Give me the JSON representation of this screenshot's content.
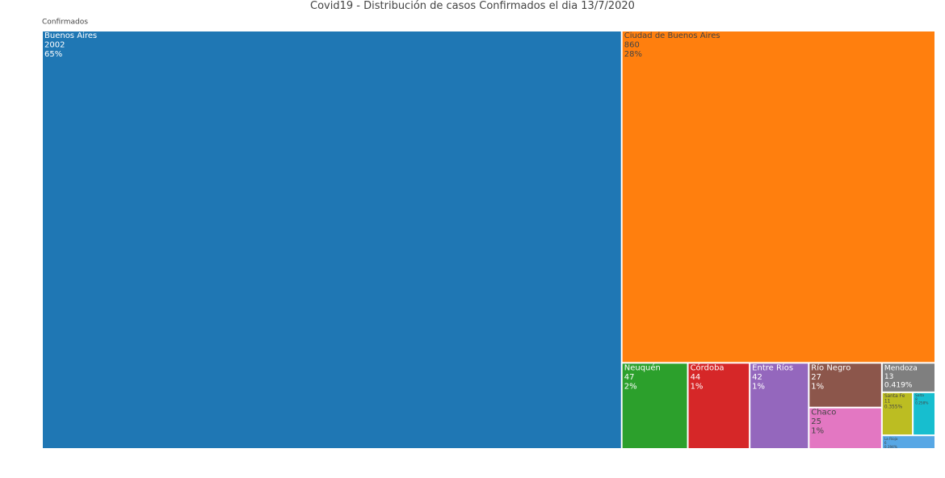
{
  "chart_data": {
    "type": "treemap",
    "title": "Covid19 - Distribución de casos Confirmados el dia 13/7/2020",
    "root": "Confirmados",
    "categories": [
      "Buenos Aires",
      "Ciudad de Buenos Aires",
      "Neuquén",
      "Córdoba",
      "Entre Ríos",
      "Río Negro",
      "Chaco",
      "Mendoza",
      "Santa Fe",
      "Salta",
      "La Rioja"
    ],
    "values": [
      2002,
      860,
      47,
      44,
      42,
      27,
      25,
      13,
      11,
      8,
      6
    ],
    "percent_labels": [
      "65%",
      "28%",
      "2%",
      "1%",
      "1%",
      "1%",
      "1%",
      "0.419%",
      "0.355%",
      "0.258%",
      "0.194%"
    ],
    "colors": [
      "#1f77b4",
      "#ff7f0e",
      "#2ca02c",
      "#d62728",
      "#9467bd",
      "#8c564b",
      "#e377c2",
      "#7f7f7f",
      "#bcbd22",
      "#17becf",
      "#57a7e5"
    ]
  }
}
